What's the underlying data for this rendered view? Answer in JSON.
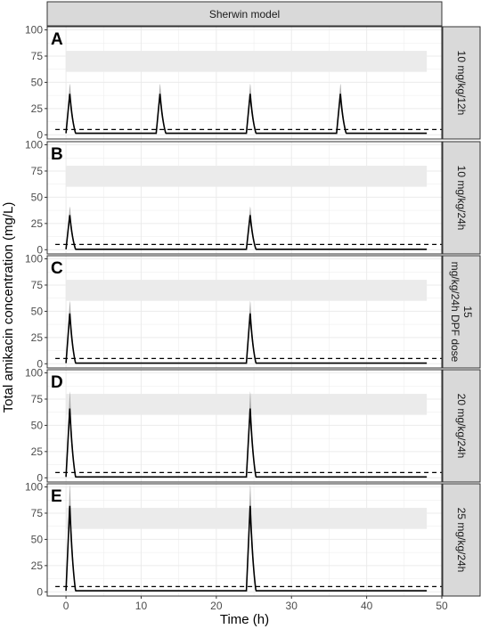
{
  "chart_data": {
    "type": "line",
    "title": "Sherwin model",
    "xlabel": "Time (h)",
    "ylabel": "Total amikacin concentration (mg/L)",
    "xlim": [
      -2.5,
      50
    ],
    "ylim": [
      -4,
      103
    ],
    "x_ticks": [
      "0",
      "10",
      "20",
      "30",
      "40",
      "50"
    ],
    "y_ticks": [
      "0",
      "25",
      "50",
      "75",
      "100"
    ],
    "grid": true,
    "target_band": [
      60,
      80
    ],
    "reference_line": 5,
    "colors": {
      "line": "#000000",
      "ribbon": "#9a9a9a",
      "band": "#ebebeb",
      "strip": "#d9d9d9",
      "grid": "#ebebeb",
      "border": "#333333"
    },
    "panels": [
      {
        "tag": "A",
        "label": "10 mg/kg/12h",
        "dose_times": [
          0,
          12,
          24,
          36
        ],
        "peak": 39,
        "peak_time": 0.5,
        "trough": 1.5
      },
      {
        "tag": "B",
        "label": "10 mg/kg/24h",
        "dose_times": [
          0,
          24
        ],
        "peak": 33,
        "peak_time": 0.5,
        "trough": 0.4
      },
      {
        "tag": "C",
        "label": "15 mg/kg/24h DPF dose",
        "dose_times": [
          0,
          24
        ],
        "peak": 48,
        "peak_time": 0.5,
        "trough": 0.6
      },
      {
        "tag": "D",
        "label": "20 mg/kg/24h",
        "dose_times": [
          0,
          24
        ],
        "peak": 66,
        "peak_time": 0.5,
        "trough": 0.8
      },
      {
        "tag": "E",
        "label": "25 mg/kg/24h",
        "dose_times": [
          0,
          24
        ],
        "peak": 82,
        "peak_time": 0.5,
        "trough": 1.0
      }
    ]
  }
}
